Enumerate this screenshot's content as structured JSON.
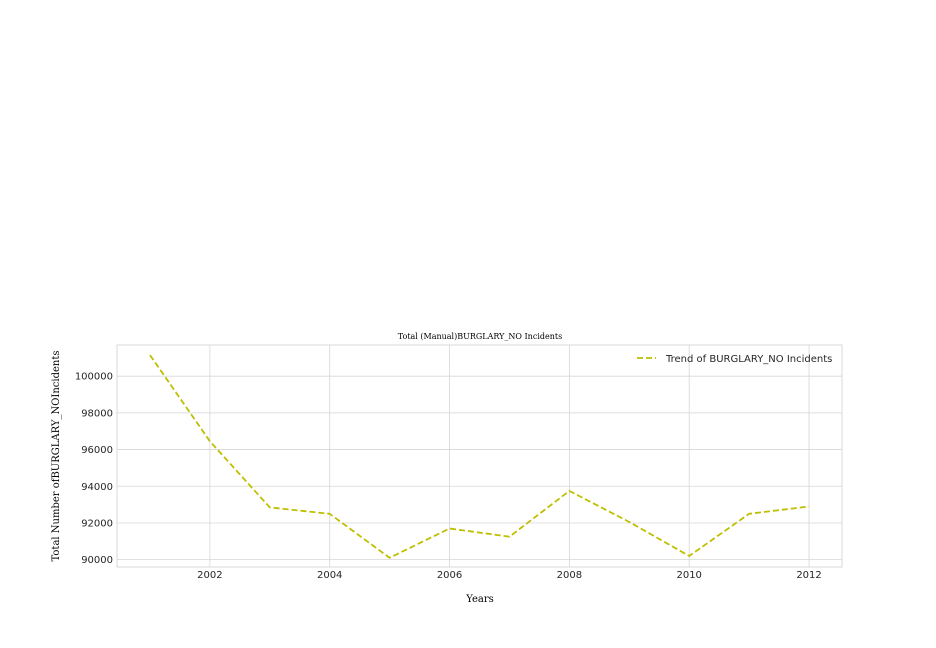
{
  "chart_data": {
    "type": "line",
    "title": "Total (Manual)BURGLARY_NO  Incidents",
    "xlabel": "Years",
    "ylabel": "Total Number ofBURGLARY_NOIncidents",
    "x": [
      2001,
      2002,
      2003,
      2004,
      2005,
      2006,
      2007,
      2008,
      2009,
      2010,
      2011,
      2012
    ],
    "series": [
      {
        "name": "Trend of BURGLARY_NO Incidents",
        "values": [
          101150,
          96450,
          92850,
          92500,
          90100,
          91700,
          91250,
          93750,
          92050,
          90200,
          92500,
          92900
        ],
        "color": "#bfbf00",
        "style": "dashed"
      }
    ],
    "xlim": [
      2000.45,
      2012.55
    ],
    "ylim": [
      89600,
      101700
    ],
    "xticks": [
      2002,
      2004,
      2006,
      2008,
      2010,
      2012
    ],
    "yticks": [
      90000,
      92000,
      94000,
      96000,
      98000,
      100000
    ],
    "grid": true,
    "legend_position": "top-right"
  }
}
